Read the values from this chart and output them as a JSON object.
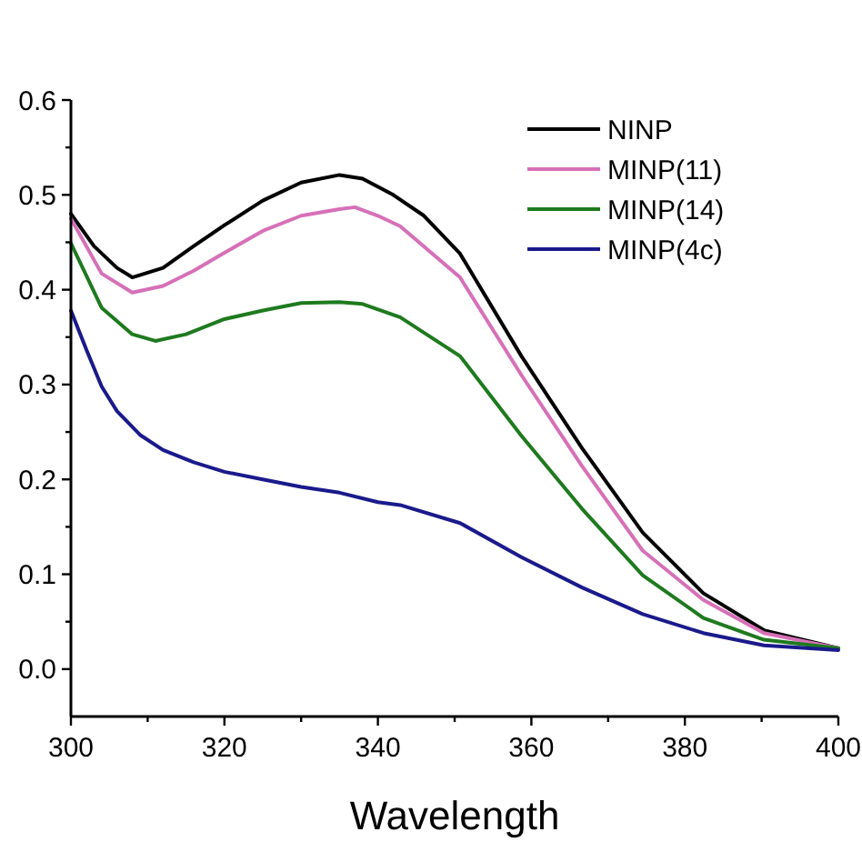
{
  "chart_data": {
    "type": "line",
    "xlabel": "Wavelength",
    "xlim": [
      300,
      400
    ],
    "ylim": [
      -0.05,
      0.6
    ],
    "xticks": [
      300,
      {
        "value": 310,
        "label": null
      },
      320,
      {
        "value": 330,
        "label": null
      },
      340,
      {
        "value": 350,
        "label": null
      },
      360,
      {
        "value": 370,
        "label": null
      },
      380,
      {
        "value": 390,
        "label": null
      },
      400
    ],
    "yticks": [
      {
        "value": 0,
        "label": "0.0"
      },
      {
        "value": 0.05,
        "label": null
      },
      0.1,
      {
        "value": 0.15,
        "label": null
      },
      0.2,
      {
        "value": 0.25,
        "label": null
      },
      0.3,
      {
        "value": 0.35,
        "label": null
      },
      0.4,
      {
        "value": 0.45,
        "label": null
      },
      0.5,
      {
        "value": 0.55,
        "label": null
      },
      0.6
    ],
    "grid": false,
    "legend": "top right",
    "line_style": "solid",
    "series": [
      {
        "name": "NINP",
        "color": "#000000",
        "x": [
          300,
          303,
          306,
          308,
          312,
          316,
          320,
          325,
          330,
          335,
          338,
          342,
          346,
          350.7,
          358.7,
          366.6,
          374.5,
          382.4,
          390.3,
          400
        ],
        "values": [
          0.48,
          0.446,
          0.423,
          0.413,
          0.423,
          0.446,
          0.468,
          0.494,
          0.513,
          0.521,
          0.517,
          0.5,
          0.478,
          0.438,
          0.33,
          0.233,
          0.144,
          0.08,
          0.041,
          0.022
        ]
      },
      {
        "name": "MINP(11)",
        "color": "#d670b8",
        "x": [
          300,
          304,
          308,
          312,
          316,
          320,
          325,
          330,
          335,
          337,
          340,
          342.9,
          350.7,
          358.7,
          366.6,
          374.5,
          382.4,
          390.3,
          400
        ],
        "values": [
          0.475,
          0.417,
          0.397,
          0.404,
          0.42,
          0.439,
          0.462,
          0.478,
          0.485,
          0.487,
          0.478,
          0.467,
          0.413,
          0.31,
          0.214,
          0.125,
          0.073,
          0.038,
          0.022
        ]
      },
      {
        "name": "MINP(14)",
        "color": "#1e7a1e",
        "x": [
          300,
          304,
          308,
          311,
          315,
          320,
          325,
          330,
          335,
          338,
          342.9,
          350.7,
          358.7,
          366.6,
          374.5,
          382.4,
          390.3,
          400
        ],
        "values": [
          0.449,
          0.381,
          0.353,
          0.346,
          0.353,
          0.369,
          0.378,
          0.386,
          0.387,
          0.385,
          0.371,
          0.33,
          0.246,
          0.169,
          0.099,
          0.054,
          0.031,
          0.022
        ]
      },
      {
        "name": "MINP(4c)",
        "color": "#1a1a8c",
        "x": [
          300,
          302,
          304,
          306,
          309,
          312,
          316,
          320,
          325,
          330,
          335,
          340,
          342.9,
          350.7,
          358.7,
          366.6,
          374.5,
          382.4,
          390.3,
          400
        ],
        "values": [
          0.378,
          0.337,
          0.298,
          0.272,
          0.247,
          0.231,
          0.218,
          0.208,
          0.2,
          0.192,
          0.186,
          0.176,
          0.173,
          0.154,
          0.118,
          0.086,
          0.058,
          0.038,
          0.025,
          0.02
        ]
      }
    ]
  }
}
